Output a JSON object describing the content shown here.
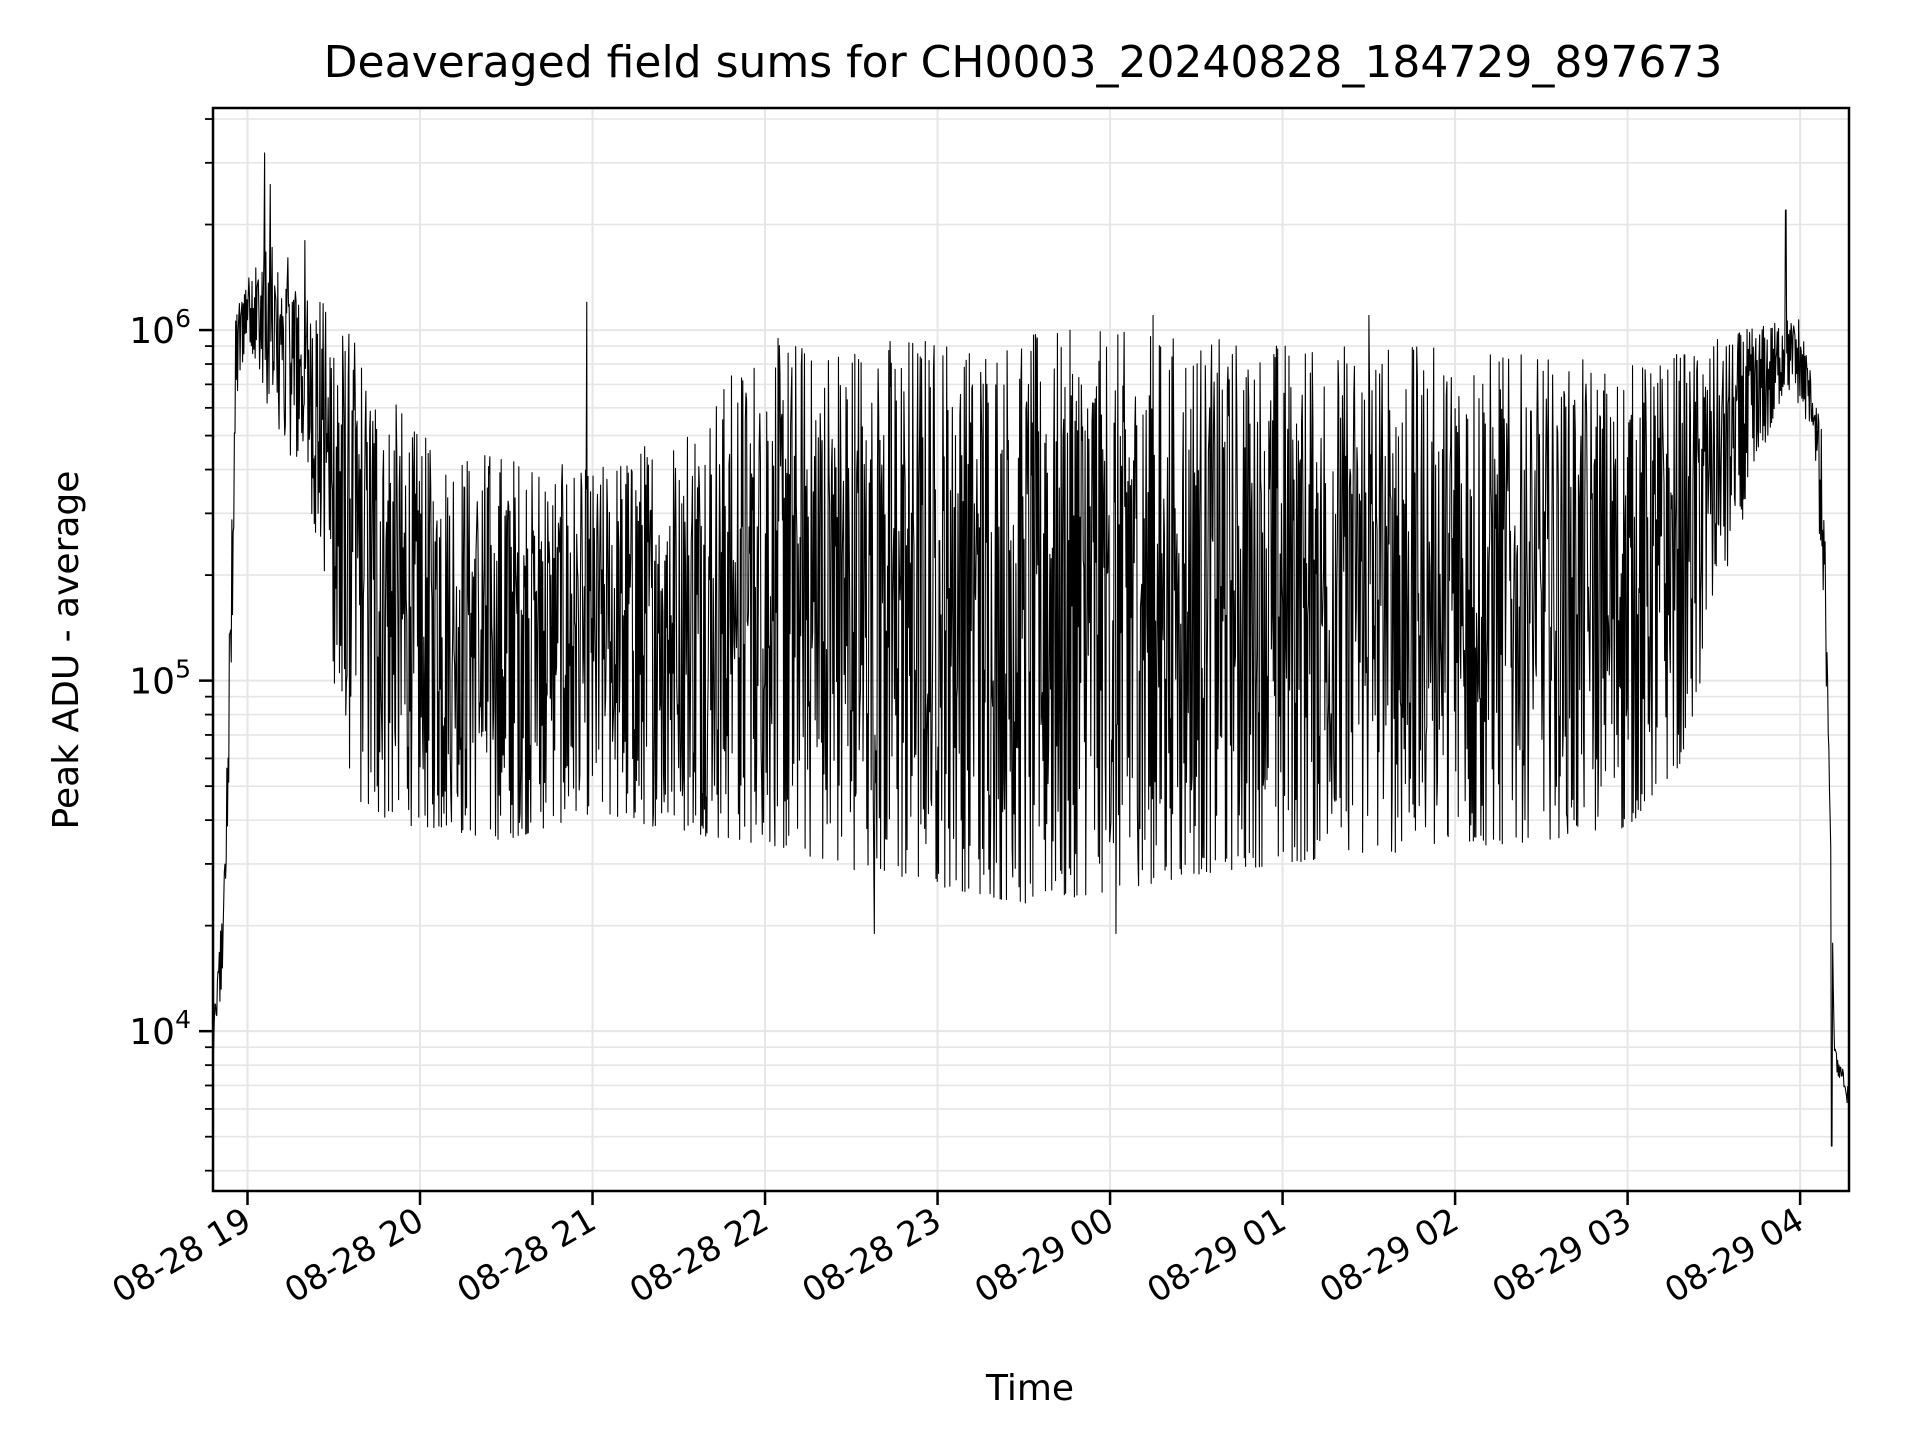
{
  "chart_data": {
    "type": "line",
    "title": "Deaveraged field sums for CH0003_20240828_184729_897673",
    "xlabel": "Time",
    "ylabel": "Peak ADU - average",
    "yscale": "log",
    "grid": true,
    "line_color": "#000000",
    "grid_color": "#e6e6e6",
    "xlim": [
      "2024-08-28 18:48",
      "2024-08-29 04:17"
    ],
    "ylim": [
      3500,
      4300000
    ],
    "x_ticks": [
      {
        "value": "2024-08-28 19:00",
        "label": "08-28 19"
      },
      {
        "value": "2024-08-28 20:00",
        "label": "08-28 20"
      },
      {
        "value": "2024-08-28 21:00",
        "label": "08-28 21"
      },
      {
        "value": "2024-08-28 22:00",
        "label": "08-28 22"
      },
      {
        "value": "2024-08-28 23:00",
        "label": "08-28 23"
      },
      {
        "value": "2024-08-29 00:00",
        "label": "08-29 00"
      },
      {
        "value": "2024-08-29 01:00",
        "label": "08-29 01"
      },
      {
        "value": "2024-08-29 02:00",
        "label": "08-29 02"
      },
      {
        "value": "2024-08-29 03:00",
        "label": "08-29 03"
      },
      {
        "value": "2024-08-29 04:00",
        "label": "08-29 04"
      }
    ],
    "y_ticks": [
      {
        "value": 10000,
        "base": "10",
        "exp": "4"
      },
      {
        "value": 100000,
        "base": "10",
        "exp": "5"
      },
      {
        "value": 1000000,
        "base": "10",
        "exp": "6"
      }
    ],
    "series": [
      {
        "lower_envelope": [
          [
            "2024-08-28 18:48",
            8500
          ],
          [
            "2024-08-28 18:50",
            10000
          ],
          [
            "2024-08-28 18:52",
            18000
          ],
          [
            "2024-08-28 18:54",
            60000
          ],
          [
            "2024-08-28 18:56",
            600000
          ],
          [
            "2024-08-28 19:00",
            1000000
          ],
          [
            "2024-08-28 19:08",
            500000
          ],
          [
            "2024-08-28 19:20",
            400000
          ],
          [
            "2024-08-28 19:28",
            150000
          ],
          [
            "2024-08-28 19:32",
            70000
          ],
          [
            "2024-08-28 19:40",
            42000
          ],
          [
            "2024-08-28 20:00",
            38000
          ],
          [
            "2024-08-28 20:30",
            35000
          ],
          [
            "2024-08-28 21:00",
            42000
          ],
          [
            "2024-08-28 21:30",
            37000
          ],
          [
            "2024-08-28 22:00",
            34000
          ],
          [
            "2024-08-28 22:30",
            29000
          ],
          [
            "2024-08-28 23:00",
            26000
          ],
          [
            "2024-08-28 23:30",
            23000
          ],
          [
            "2024-08-29 00:00",
            25000
          ],
          [
            "2024-08-29 00:30",
            28000
          ],
          [
            "2024-08-29 01:00",
            30000
          ],
          [
            "2024-08-29 01:30",
            32000
          ],
          [
            "2024-08-29 02:00",
            33000
          ],
          [
            "2024-08-29 02:30",
            35000
          ],
          [
            "2024-08-29 03:00",
            38000
          ],
          [
            "2024-08-29 03:20",
            60000
          ],
          [
            "2024-08-29 03:30",
            150000
          ],
          [
            "2024-08-29 03:45",
            400000
          ],
          [
            "2024-08-29 03:55",
            700000
          ],
          [
            "2024-08-29 04:05",
            500000
          ],
          [
            "2024-08-29 04:10",
            60000
          ],
          [
            "2024-08-29 04:12",
            8000
          ],
          [
            "2024-08-29 04:17",
            6000
          ]
        ],
        "upper_envelope": [
          [
            "2024-08-28 18:48",
            10000
          ],
          [
            "2024-08-28 18:52",
            30000
          ],
          [
            "2024-08-28 18:56",
            1200000
          ],
          [
            "2024-08-28 19:05",
            1800000
          ],
          [
            "2024-08-28 19:15",
            1600000
          ],
          [
            "2024-08-28 19:25",
            1300000
          ],
          [
            "2024-08-28 19:40",
            900000
          ],
          [
            "2024-08-28 20:00",
            500000
          ],
          [
            "2024-08-28 20:30",
            450000
          ],
          [
            "2024-08-28 21:00",
            400000
          ],
          [
            "2024-08-28 21:30",
            550000
          ],
          [
            "2024-08-28 22:00",
            950000
          ],
          [
            "2024-08-28 23:00",
            1000000
          ],
          [
            "2024-08-29 00:00",
            1000000
          ],
          [
            "2024-08-29 01:00",
            950000
          ],
          [
            "2024-08-29 02:00",
            900000
          ],
          [
            "2024-08-29 03:00",
            800000
          ],
          [
            "2024-08-29 03:40",
            1000000
          ],
          [
            "2024-08-29 04:00",
            1100000
          ],
          [
            "2024-08-29 04:08",
            500000
          ],
          [
            "2024-08-29 04:12",
            9000
          ],
          [
            "2024-08-29 04:17",
            7000
          ]
        ],
        "spikes": [
          [
            "2024-08-28 19:06",
            3200000
          ],
          [
            "2024-08-28 19:08",
            2600000
          ],
          [
            "2024-08-28 19:20",
            1800000
          ],
          [
            "2024-08-28 20:58",
            1200000
          ],
          [
            "2024-08-29 00:15",
            1100000
          ],
          [
            "2024-08-29 01:30",
            1100000
          ],
          [
            "2024-08-29 03:55",
            2200000
          ],
          [
            "2024-08-28 22:38",
            19000
          ],
          [
            "2024-08-29 00:02",
            19000
          ],
          [
            "2024-08-29 04:11",
            4700
          ]
        ]
      }
    ]
  }
}
